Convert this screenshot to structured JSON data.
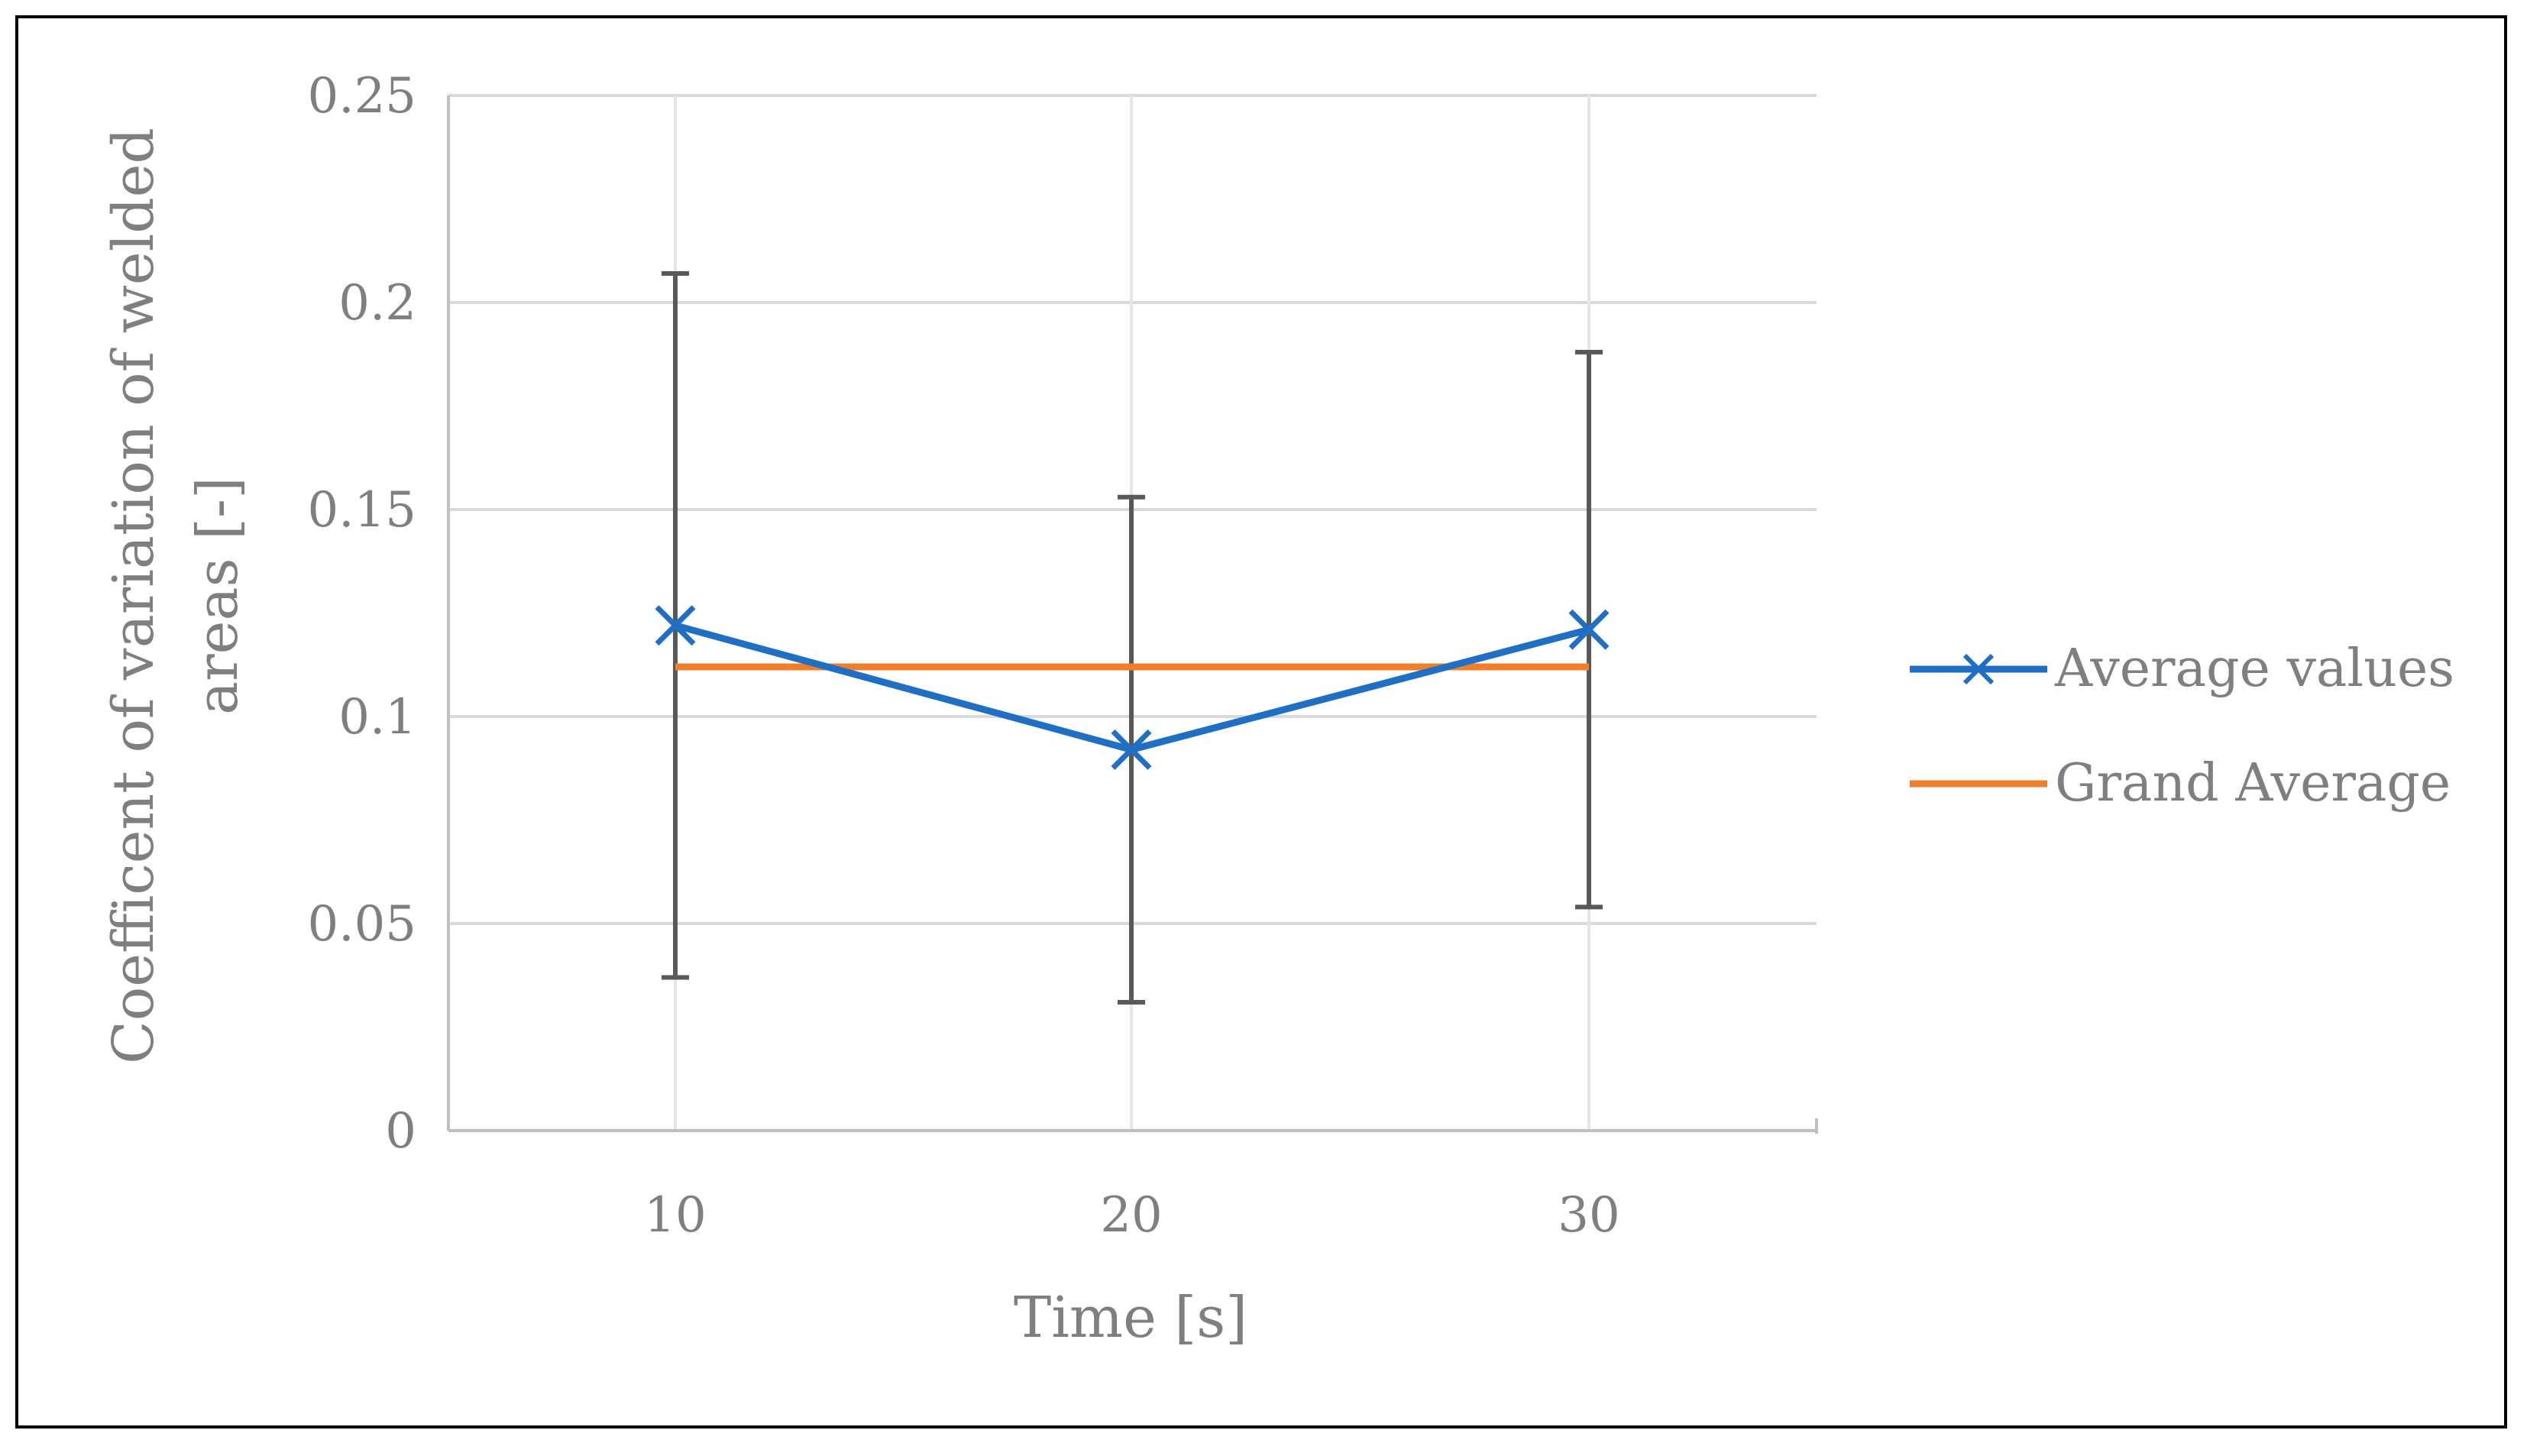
{
  "chart_data": {
    "type": "line",
    "x": [
      10,
      20,
      30
    ],
    "x_tick_labels": [
      "10",
      "20",
      "30"
    ],
    "xlabel": "Time [s]",
    "ylabel_lines": [
      "Coefficent of variation of welded",
      "areas [-]"
    ],
    "ylim": [
      0,
      0.25
    ],
    "y_ticks": [
      0,
      0.05,
      0.1,
      0.15,
      0.2,
      0.25
    ],
    "y_tick_labels": [
      "0",
      "0.05",
      "0.1",
      "0.15",
      "0.2",
      "0.25"
    ],
    "grid": true,
    "legend_position": "right",
    "series": [
      {
        "name": "Average values",
        "values": [
          0.122,
          0.092,
          0.121
        ],
        "error_low": [
          0.037,
          0.031,
          0.054
        ],
        "error_high": [
          0.207,
          0.153,
          0.188
        ],
        "marker": "x",
        "color": "#1f6fc5"
      },
      {
        "name": "Grand Average",
        "values": [
          0.112,
          0.112,
          0.112
        ],
        "color": "#f07f2a"
      }
    ]
  },
  "colors": {
    "grid": "#d9d9d9",
    "axis": "#bfbfbf",
    "error_bar": "#595959",
    "text": "#7f7f7f",
    "frame": "#000000"
  }
}
